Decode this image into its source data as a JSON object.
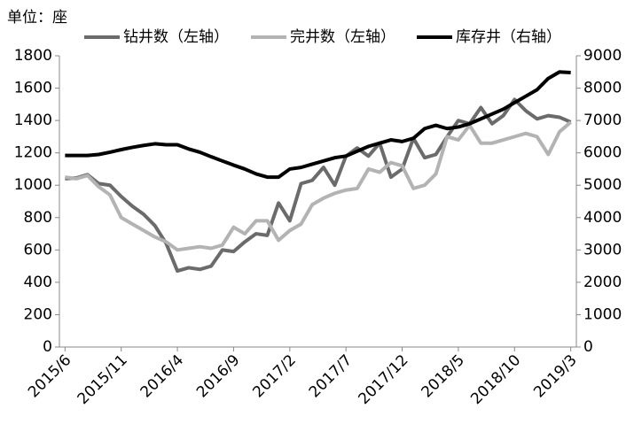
{
  "chart_data": {
    "type": "line",
    "unit_label": "单位：座",
    "categories": [
      "2015/6",
      null,
      null,
      null,
      null,
      "2015/11",
      null,
      null,
      null,
      null,
      "2016/4",
      null,
      null,
      null,
      null,
      "2016/9",
      null,
      null,
      null,
      null,
      "2017/2",
      null,
      null,
      null,
      null,
      "2017/7",
      null,
      null,
      null,
      null,
      "2017/12",
      null,
      null,
      null,
      null,
      "2018/5",
      null,
      null,
      null,
      null,
      "2018/10",
      null,
      null,
      null,
      null,
      "2019/3"
    ],
    "series": [
      {
        "name": "钻井数（左轴）",
        "color": "#6b6b6b",
        "axis": "y",
        "values": [
          1040,
          1045,
          1065,
          1010,
          1000,
          930,
          870,
          820,
          750,
          640,
          470,
          490,
          480,
          500,
          600,
          590,
          650,
          700,
          690,
          890,
          780,
          1010,
          1030,
          1110,
          1000,
          1180,
          1230,
          1180,
          1260,
          1050,
          1100,
          1290,
          1170,
          1190,
          1300,
          1400,
          1380,
          1480,
          1380,
          1430,
          1530,
          1460,
          1410,
          1430,
          1420,
          1390
        ]
      },
      {
        "name": "完井数（左轴）",
        "color": "#b3b3b3",
        "axis": "y",
        "values": [
          1050,
          1040,
          1060,
          990,
          940,
          800,
          760,
          720,
          680,
          650,
          600,
          610,
          620,
          610,
          630,
          740,
          700,
          780,
          780,
          660,
          720,
          760,
          880,
          920,
          950,
          970,
          980,
          1100,
          1080,
          1140,
          1120,
          980,
          1000,
          1070,
          1300,
          1280,
          1370,
          1260,
          1260,
          1280,
          1300,
          1320,
          1300,
          1190,
          1330,
          1390
        ]
      },
      {
        "name": "库存井（右轴）",
        "color": "#000000",
        "axis": "y2",
        "values": [
          5920,
          5920,
          5920,
          5950,
          6020,
          6100,
          6170,
          6230,
          6280,
          6250,
          6250,
          6120,
          6020,
          5880,
          5750,
          5620,
          5500,
          5350,
          5250,
          5250,
          5500,
          5550,
          5650,
          5750,
          5850,
          5900,
          6050,
          6200,
          6300,
          6400,
          6350,
          6450,
          6750,
          6850,
          6750,
          6800,
          6900,
          7050,
          7200,
          7350,
          7550,
          7750,
          7950,
          8300,
          8500,
          8480
        ]
      }
    ],
    "ylim": [
      0,
      1800
    ],
    "yticks": [
      0,
      200,
      400,
      600,
      800,
      1000,
      1200,
      1400,
      1600,
      1800
    ],
    "y2lim": [
      0,
      9000
    ],
    "y2ticks": [
      0,
      1000,
      2000,
      3000,
      4000,
      5000,
      6000,
      7000,
      8000,
      9000
    ],
    "grid": false
  }
}
